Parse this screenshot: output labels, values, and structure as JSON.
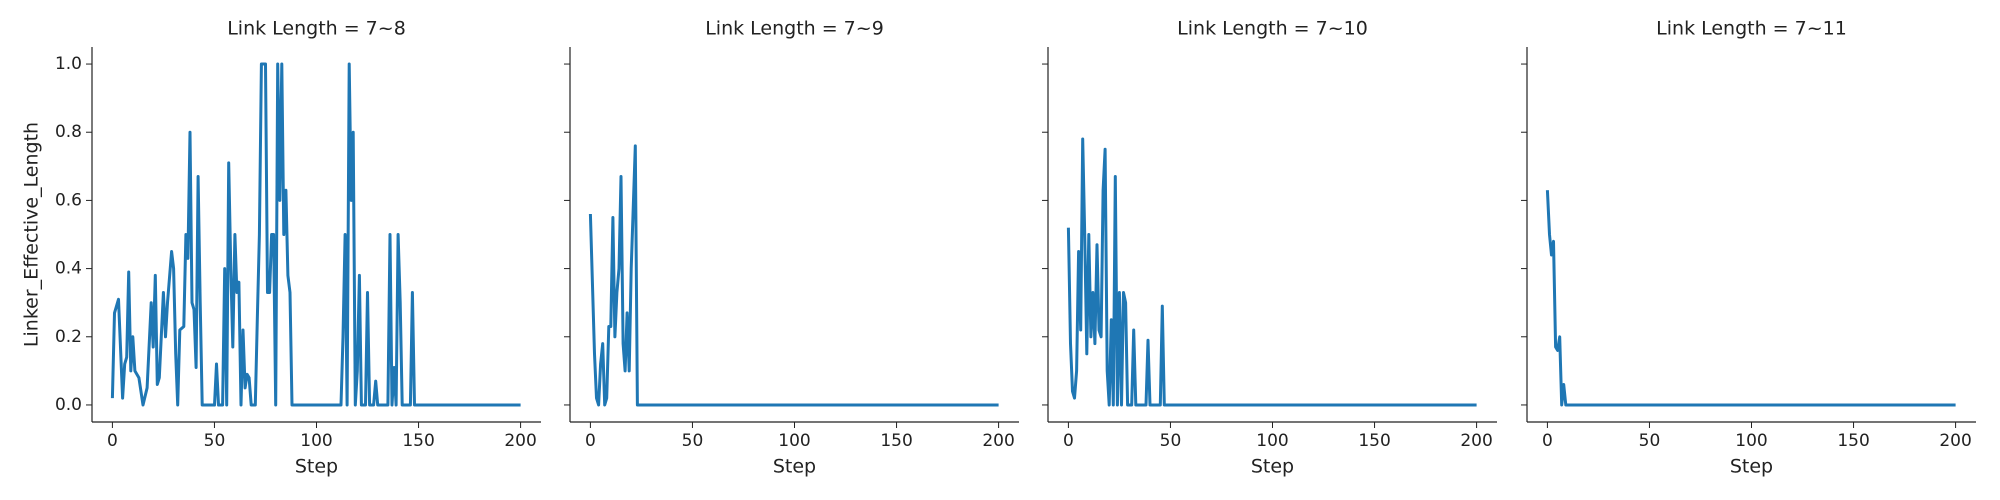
{
  "chart_data": [
    {
      "type": "line",
      "title": "Link Length = 7~8",
      "xlabel": "Step",
      "ylabel": "Linker_Effective_Length",
      "color": "#1f77b4",
      "xlim": [
        -10,
        210
      ],
      "ylim": [
        -0.05,
        1.05
      ],
      "xticks": [
        0,
        50,
        100,
        150,
        200
      ],
      "yticks": [
        {
          "value": 0,
          "label": "0.0"
        },
        {
          "value": 0.2,
          "label": "0.2"
        },
        {
          "value": 0.4,
          "label": "0.4"
        },
        {
          "value": 0.6,
          "label": "0.6"
        },
        {
          "value": 0.8,
          "label": "0.8"
        },
        {
          "value": 1,
          "label": "1.0"
        }
      ],
      "x": [
        0,
        1,
        3,
        5,
        6,
        7,
        8,
        9,
        10,
        11,
        13,
        15,
        17,
        19,
        20,
        21,
        22,
        23,
        25,
        26,
        27,
        29,
        30,
        31,
        32,
        33,
        35,
        36,
        37,
        38,
        39,
        40,
        41,
        42,
        43,
        44,
        50,
        51,
        52,
        54,
        55,
        56,
        57,
        58,
        59,
        60,
        61,
        62,
        63,
        64,
        65,
        66,
        67,
        68,
        70,
        71,
        72,
        73,
        75,
        76,
        77,
        78,
        79,
        80,
        81,
        82,
        83,
        84,
        85,
        86,
        87,
        88,
        112,
        113,
        114,
        115,
        116,
        117,
        118,
        119,
        120,
        121,
        122,
        124,
        125,
        126,
        128,
        129,
        130,
        135,
        136,
        137,
        138,
        139,
        140,
        141,
        142,
        146,
        147,
        148,
        200
      ],
      "values": [
        0.02,
        0.27,
        0.31,
        0.02,
        0.12,
        0.14,
        0.39,
        0.1,
        0.2,
        0.1,
        0.08,
        0,
        0.05,
        0.3,
        0.17,
        0.38,
        0.06,
        0.08,
        0.33,
        0.2,
        0.3,
        0.45,
        0.4,
        0.15,
        0,
        0.22,
        0.23,
        0.5,
        0.43,
        0.8,
        0.3,
        0.28,
        0.11,
        0.67,
        0.3,
        0,
        0,
        0.12,
        0,
        0,
        0.4,
        0,
        0.71,
        0.4,
        0.17,
        0.5,
        0.33,
        0.36,
        0,
        0.22,
        0.05,
        0.09,
        0.08,
        0,
        0,
        0.25,
        0.5,
        1,
        1,
        0.33,
        0.33,
        0.5,
        0.5,
        0,
        1,
        0.6,
        1,
        0.5,
        0.63,
        0.38,
        0.33,
        0,
        0,
        0.2,
        0.5,
        0,
        1,
        0.6,
        0.8,
        0,
        0.1,
        0.38,
        0,
        0,
        0.33,
        0,
        0,
        0.07,
        0,
        0,
        0.5,
        0,
        0.11,
        0,
        0.5,
        0.3,
        0,
        0,
        0.33,
        0,
        0
      ]
    },
    {
      "type": "line",
      "title": "Link Length = 7~9",
      "xlabel": "Step",
      "color": "#1f77b4",
      "xlim": [
        -10,
        210
      ],
      "ylim": [
        -0.05,
        1.05
      ],
      "xticks": [
        0,
        50,
        100,
        150,
        200
      ],
      "x": [
        0,
        2,
        3,
        4,
        5,
        6,
        7,
        8,
        9,
        10,
        11,
        12,
        13,
        14,
        15,
        16,
        17,
        18,
        19,
        20,
        22,
        23,
        200
      ],
      "values": [
        0.56,
        0.15,
        0.02,
        0,
        0.12,
        0.18,
        0,
        0.02,
        0.23,
        0.23,
        0.55,
        0.2,
        0.33,
        0.4,
        0.67,
        0.18,
        0.1,
        0.27,
        0.1,
        0.4,
        0.76,
        0,
        0
      ]
    },
    {
      "type": "line",
      "title": "Link Length = 7~10",
      "xlabel": "Step",
      "color": "#1f77b4",
      "xlim": [
        -10,
        210
      ],
      "ylim": [
        -0.05,
        1.05
      ],
      "xticks": [
        0,
        50,
        100,
        150,
        200
      ],
      "x": [
        0,
        1,
        2,
        3,
        4,
        5,
        6,
        7,
        8,
        9,
        10,
        11,
        12,
        13,
        14,
        15,
        16,
        17,
        18,
        19,
        20,
        21,
        22,
        23,
        24,
        25,
        26,
        27,
        28,
        29,
        31,
        32,
        33,
        38,
        39,
        40,
        45,
        46,
        47,
        200
      ],
      "values": [
        0.52,
        0.18,
        0.04,
        0.02,
        0.1,
        0.45,
        0.22,
        0.78,
        0.5,
        0.15,
        0.5,
        0.2,
        0.33,
        0.18,
        0.47,
        0.22,
        0.2,
        0.63,
        0.75,
        0.1,
        0,
        0.25,
        0,
        0.67,
        0,
        0.33,
        0,
        0.33,
        0.3,
        0,
        0,
        0.22,
        0,
        0,
        0.19,
        0,
        0,
        0.29,
        0,
        0
      ]
    },
    {
      "type": "line",
      "title": "Link Length = 7~11",
      "xlabel": "Step",
      "color": "#1f77b4",
      "xlim": [
        -10,
        210
      ],
      "ylim": [
        -0.05,
        1.05
      ],
      "xticks": [
        0,
        50,
        100,
        150,
        200
      ],
      "x": [
        0,
        1,
        2,
        3,
        4,
        5,
        6,
        7,
        8,
        9,
        200
      ],
      "values": [
        0.63,
        0.5,
        0.44,
        0.48,
        0.17,
        0.16,
        0.2,
        0,
        0.06,
        0,
        0
      ]
    }
  ]
}
